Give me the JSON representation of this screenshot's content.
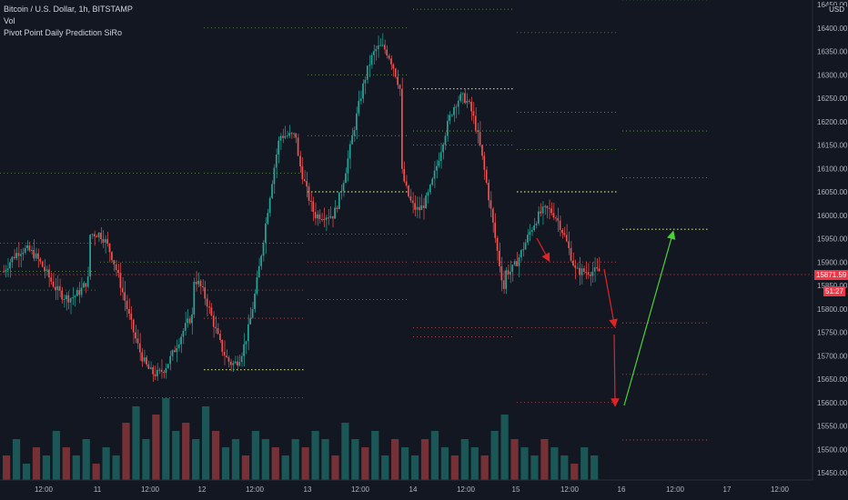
{
  "legend": {
    "symbol": "Bitcoin / U.S. Dollar, 1h, BITSTAMP",
    "volume": "Vol",
    "indicator": "Pivot Point Daily Prediction SiRo"
  },
  "price_axis": {
    "currency": "USD",
    "ticks": [
      "16450.00",
      "16400.00",
      "16350.00",
      "16300.00",
      "16250.00",
      "16200.00",
      "16150.00",
      "16100.00",
      "16050.00",
      "16000.00",
      "15950.00",
      "15900.00",
      "15850.00",
      "15800.00",
      "15750.00",
      "15700.00",
      "15650.00",
      "15600.00",
      "15550.00",
      "15500.00",
      "15450.00"
    ],
    "last_price": "15871.59",
    "sub_label": "51:27"
  },
  "time_axis": {
    "ticks": [
      "12:00",
      "11",
      "12:00",
      "12",
      "12:00",
      "13",
      "12:00",
      "14",
      "12:00",
      "15",
      "12:00",
      "16",
      "12:00",
      "17",
      "12:00"
    ]
  },
  "colors": {
    "bull": "#26a69a",
    "bear": "#ef5350",
    "pivot_level": "#c8d48a",
    "resistance": "#8bbd6e",
    "support": "#e06f6f",
    "arrow_down": "#e02424",
    "arrow_up": "#4cd137",
    "last_price": "#f23645"
  },
  "chart_data": {
    "type": "candlestick",
    "xlabel": "",
    "ylabel": "",
    "ylim": [
      15440,
      16460
    ],
    "x_range": [
      "11 11:00 prev-day start",
      "17 12:00"
    ],
    "grid": false,
    "candles_summary": [
      {
        "day": "10-11",
        "open": 15880,
        "high": 15940,
        "low": 15800,
        "close": 15870
      },
      {
        "day": "11",
        "open": 15870,
        "high": 15960,
        "low": 15660,
        "close": 15700
      },
      {
        "day": "12",
        "open": 15700,
        "high": 16170,
        "low": 15660,
        "close": 16100
      },
      {
        "day": "13",
        "open": 16100,
        "high": 16450,
        "low": 16000,
        "close": 16230
      },
      {
        "day": "14",
        "open": 16230,
        "high": 16300,
        "low": 15780,
        "close": 15960
      },
      {
        "day": "15",
        "open": 15960,
        "high": 16140,
        "low": 15880,
        "close": 15871.59
      }
    ],
    "pivot_levels": [
      {
        "day": "11",
        "pivot": 15670,
        "r1": 15940,
        "r2": 16090,
        "r3": 16400,
        "s1": 15840,
        "s2": 15780,
        "s3": 15610
      },
      {
        "day": "13",
        "pivot": 16050,
        "r1": 16170,
        "r2": 16300,
        "r3": 16400,
        "s1": 15960,
        "s2": 15900,
        "s3": 15820
      },
      {
        "day": "14",
        "pivot": 16270,
        "r1": 16150,
        "r2": 16180,
        "r3": 16440,
        "s1": 15900,
        "s2": 15760,
        "s3": 15740
      },
      {
        "day": "15",
        "pivot": 16050,
        "r1": 16140,
        "r2": 16220,
        "r3": 16390,
        "s1": 15900,
        "s2": 15760,
        "s3": 15600
      },
      {
        "day": "16",
        "pivot": 15970,
        "r1": 16080,
        "r2": 16180,
        "r3": 16460,
        "s1": 15770,
        "s2": 15660,
        "s3": 15520
      }
    ],
    "volume_relative": [
      0.3,
      0.5,
      0.2,
      0.4,
      0.3,
      0.6,
      0.4,
      0.3,
      0.5,
      0.2,
      0.4,
      0.3,
      0.7,
      0.9,
      0.5,
      0.8,
      1.0,
      0.6,
      0.7,
      0.5,
      0.9,
      0.6,
      0.4,
      0.5,
      0.3,
      0.6,
      0.5,
      0.4,
      0.3,
      0.5,
      0.4,
      0.6,
      0.5,
      0.3,
      0.7,
      0.5,
      0.4,
      0.6,
      0.3,
      0.5,
      0.4,
      0.3,
      0.5,
      0.6,
      0.4,
      0.3,
      0.5,
      0.4,
      0.3,
      0.6,
      0.8,
      0.5,
      0.4,
      0.3,
      0.5,
      0.4,
      0.3,
      0.2,
      0.4,
      0.3
    ]
  }
}
